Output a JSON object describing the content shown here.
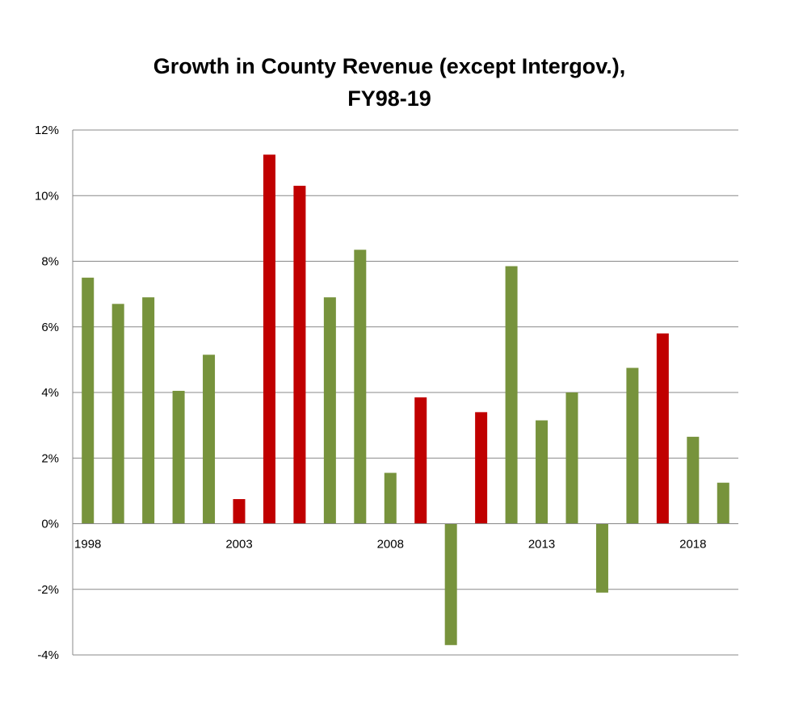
{
  "chart_data": {
    "type": "bar",
    "title_lines": [
      "Growth in County Revenue (except Intergov.),",
      "FY98-19"
    ],
    "x": [
      1998,
      1999,
      2000,
      2001,
      2002,
      2003,
      2004,
      2005,
      2006,
      2007,
      2008,
      2009,
      2010,
      2011,
      2012,
      2013,
      2014,
      2015,
      2016,
      2017,
      2018,
      2019
    ],
    "x_tick_labels": [
      "1998",
      "2003",
      "2008",
      "2013",
      "2018"
    ],
    "values": [
      7.5,
      6.7,
      6.9,
      4.05,
      5.15,
      0.75,
      11.25,
      10.3,
      6.9,
      8.35,
      1.55,
      3.85,
      -3.7,
      3.4,
      7.85,
      3.15,
      4.0,
      -2.1,
      4.75,
      5.8,
      2.65,
      1.25
    ],
    "highlighted": [
      false,
      false,
      false,
      false,
      false,
      true,
      true,
      true,
      false,
      false,
      false,
      true,
      false,
      true,
      false,
      false,
      false,
      false,
      false,
      true,
      false,
      false
    ],
    "ylim": [
      -4,
      12
    ],
    "y_ticks": [
      -4,
      -2,
      0,
      2,
      4,
      6,
      8,
      10,
      12
    ],
    "y_tick_labels": [
      "-4%",
      "-2%",
      "0%",
      "2%",
      "4%",
      "6%",
      "8%",
      "10%",
      "12%"
    ],
    "grid": true,
    "colors": {
      "default": "#77933c",
      "highlight": "#c00000",
      "grid": "#888888"
    }
  }
}
